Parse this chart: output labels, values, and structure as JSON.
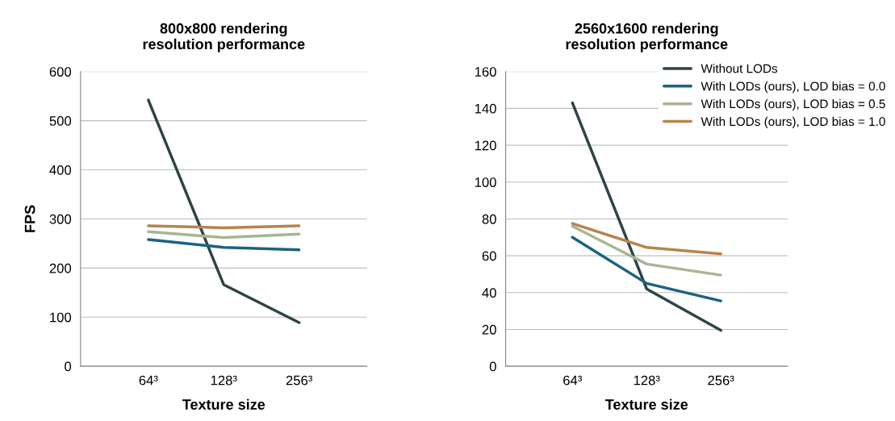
{
  "chart_data": [
    {
      "type": "line",
      "title": "800x800 rendering\nresolution performance",
      "xlabel": "Texture size",
      "ylabel": "FPS",
      "categories": [
        "64³",
        "128³",
        "256³"
      ],
      "series": [
        {
          "color": "#2e4446",
          "values": [
            542,
            166,
            89
          ]
        },
        {
          "color": "#1c6282",
          "values": [
            258,
            242,
            237
          ]
        },
        {
          "color": "#a9b494",
          "values": [
            274,
            262,
            269
          ]
        },
        {
          "color": "#b8844c",
          "values": [
            286,
            282,
            286
          ]
        }
      ],
      "ylim": [
        0,
        600
      ],
      "yticks": [
        0,
        100,
        200,
        300,
        400,
        500,
        600
      ],
      "grid": "y"
    },
    {
      "type": "line",
      "title": "2560x1600 rendering\nresolution performance",
      "xlabel": "Texture size",
      "categories": [
        "64³",
        "128³",
        "256³"
      ],
      "series": [
        {
          "name": "Without LODs",
          "color": "#2e4446",
          "values": [
            143,
            42,
            19.5
          ]
        },
        {
          "name": "With LODs (ours), LOD bias = 0.0",
          "color": "#1c6282",
          "values": [
            70,
            45,
            35.5
          ]
        },
        {
          "name": "With LODs (ours), LOD bias = 0.5",
          "color": "#a9b494",
          "values": [
            76,
            55.5,
            49.5
          ]
        },
        {
          "name": "With LODs (ours), LOD bias = 1.0",
          "color": "#b8844c",
          "values": [
            77.5,
            64.5,
            61
          ]
        }
      ],
      "ylim": [
        0,
        160
      ],
      "yticks": [
        0,
        20,
        40,
        60,
        80,
        100,
        120,
        140,
        160
      ],
      "grid": "y",
      "legend": "top right"
    }
  ]
}
